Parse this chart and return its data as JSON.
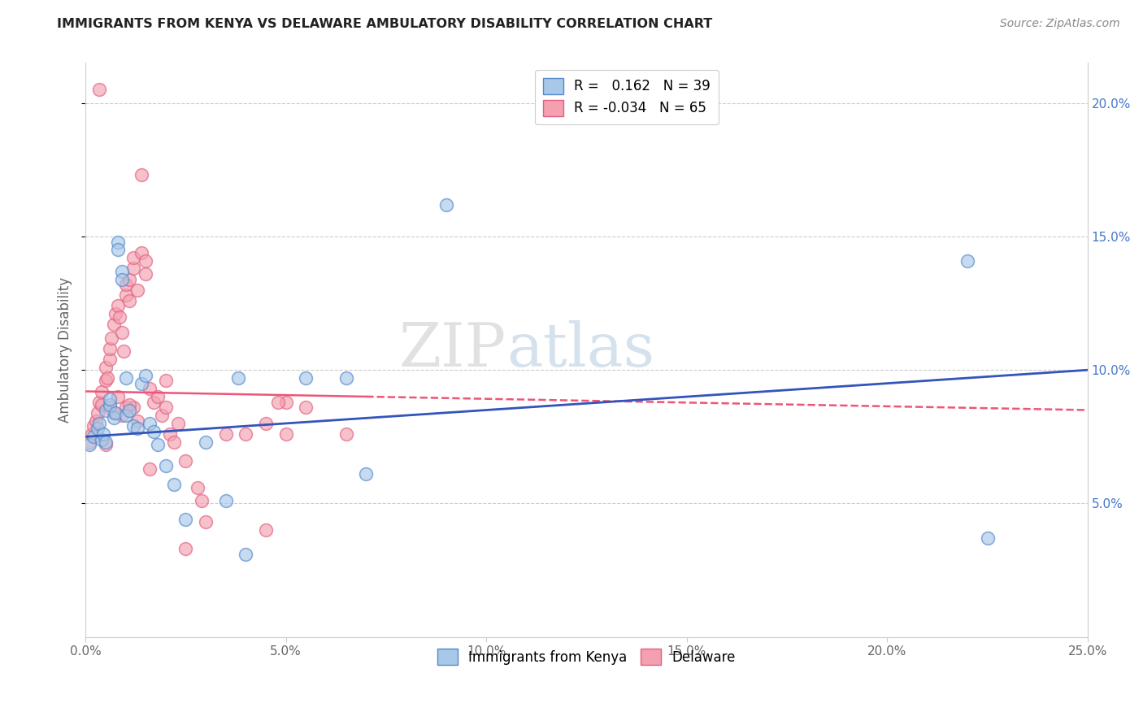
{
  "title": "IMMIGRANTS FROM KENYA VS DELAWARE AMBULATORY DISABILITY CORRELATION CHART",
  "source": "Source: ZipAtlas.com",
  "ylabel": "Ambulatory Disability",
  "legend_entry1": "R =   0.162   N = 39",
  "legend_entry2": "R = -0.034   N = 65",
  "legend_label1": "Immigrants from Kenya",
  "legend_label2": "Delaware",
  "blue_color": "#A8C8E8",
  "pink_color": "#F4A0B0",
  "blue_edge_color": "#5588CC",
  "pink_edge_color": "#E06080",
  "blue_line_color": "#3355BB",
  "pink_line_color": "#EE5577",
  "watermark": "ZIPatlas",
  "xlim": [
    0.0,
    25.0
  ],
  "ylim": [
    0.0,
    21.5
  ],
  "blue_x": [
    0.1,
    0.2,
    0.3,
    0.35,
    0.4,
    0.45,
    0.5,
    0.5,
    0.6,
    0.6,
    0.7,
    0.75,
    0.8,
    0.8,
    0.9,
    0.9,
    1.0,
    1.0,
    1.1,
    1.2,
    1.3,
    1.4,
    1.5,
    1.6,
    1.7,
    1.8,
    2.0,
    2.2,
    2.5,
    3.0,
    3.5,
    4.0,
    5.5,
    7.0,
    9.0,
    22.0,
    22.5,
    3.8,
    6.5
  ],
  "blue_y": [
    7.2,
    7.5,
    7.8,
    8.0,
    7.4,
    7.6,
    7.3,
    8.5,
    8.7,
    8.9,
    8.2,
    8.4,
    14.8,
    14.5,
    13.7,
    13.4,
    9.7,
    8.3,
    8.5,
    7.9,
    7.8,
    9.5,
    9.8,
    8.0,
    7.7,
    7.2,
    6.4,
    5.7,
    4.4,
    7.3,
    5.1,
    3.1,
    9.7,
    6.1,
    16.2,
    14.1,
    3.7,
    9.7,
    9.7
  ],
  "pink_x": [
    0.1,
    0.15,
    0.2,
    0.25,
    0.3,
    0.35,
    0.4,
    0.4,
    0.5,
    0.5,
    0.55,
    0.6,
    0.6,
    0.65,
    0.7,
    0.75,
    0.8,
    0.85,
    0.9,
    0.95,
    1.0,
    1.0,
    1.1,
    1.1,
    1.2,
    1.2,
    1.3,
    1.4,
    1.5,
    1.5,
    1.6,
    1.7,
    1.8,
    1.9,
    2.0,
    2.1,
    2.2,
    2.3,
    2.5,
    2.8,
    3.0,
    3.5,
    4.0,
    4.5,
    5.0,
    5.5,
    0.35,
    1.4,
    1.2,
    0.9,
    1.0,
    0.7,
    0.8,
    1.1,
    0.6,
    1.3,
    0.5,
    2.5,
    2.9,
    2.0,
    6.5,
    5.0,
    4.5,
    4.8,
    1.6
  ],
  "pink_y": [
    7.3,
    7.6,
    7.9,
    8.1,
    8.4,
    8.8,
    9.2,
    8.7,
    9.6,
    10.1,
    9.7,
    10.4,
    10.8,
    11.2,
    11.7,
    12.1,
    12.4,
    12.0,
    11.4,
    10.7,
    12.8,
    13.2,
    12.6,
    13.4,
    13.8,
    14.2,
    13.0,
    14.4,
    14.1,
    13.6,
    9.3,
    8.8,
    9.0,
    8.3,
    8.6,
    7.6,
    7.3,
    8.0,
    6.6,
    5.6,
    4.3,
    7.6,
    7.6,
    4.0,
    7.6,
    8.6,
    20.5,
    17.3,
    8.6,
    8.3,
    8.6,
    8.4,
    9.0,
    8.7,
    8.6,
    8.1,
    7.2,
    3.3,
    5.1,
    9.6,
    7.6,
    8.8,
    8.0,
    8.8,
    6.3
  ]
}
